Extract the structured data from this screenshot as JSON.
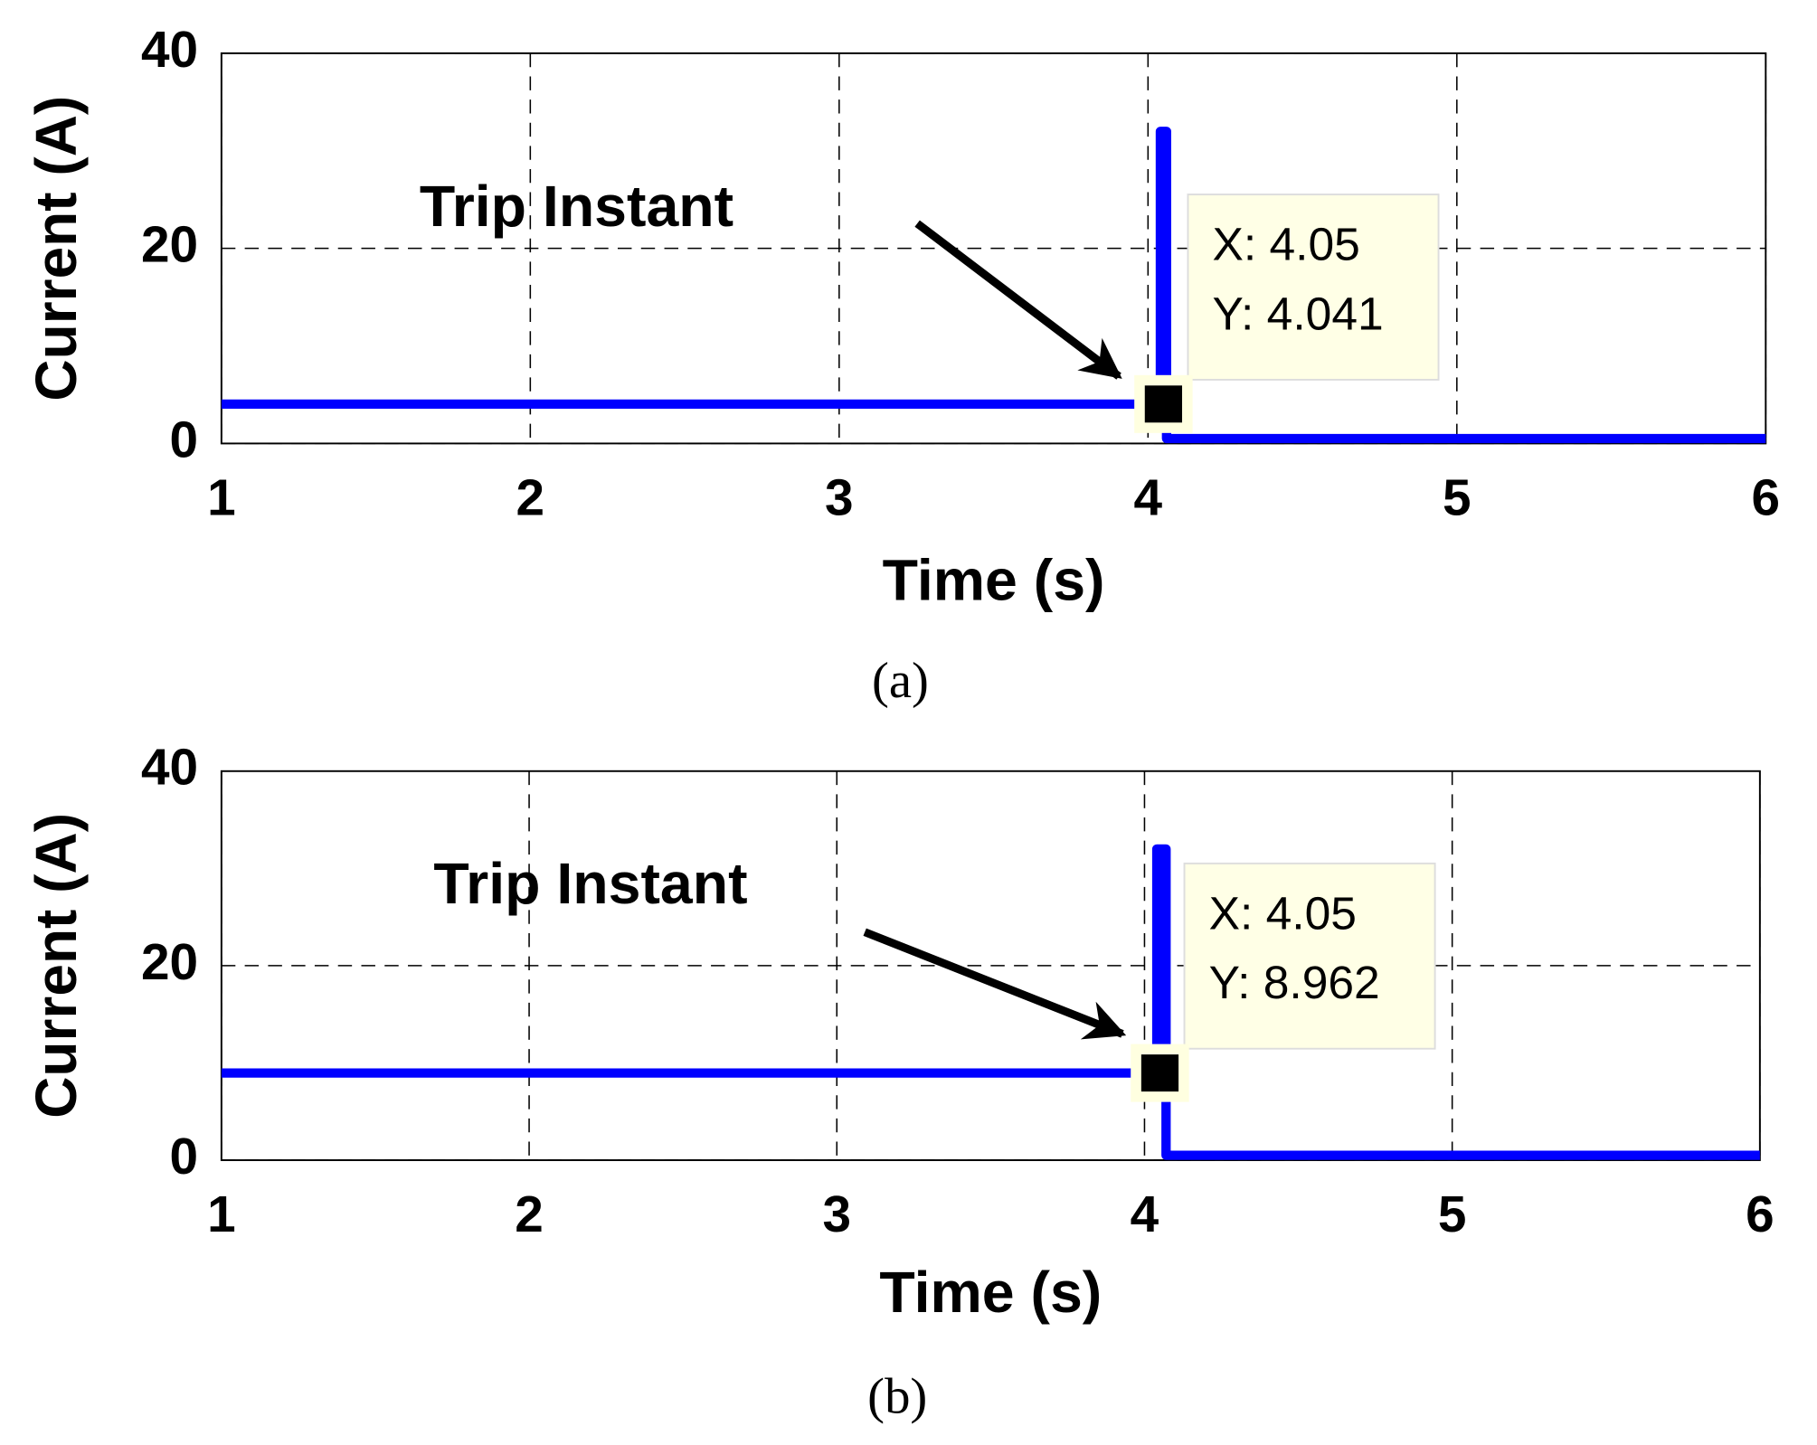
{
  "chart_data": [
    {
      "type": "line",
      "caption": "(a)",
      "xlabel": "Time (s)",
      "ylabel": "Current (A)",
      "annotation": "Trip Instant",
      "xlim": [
        1,
        6
      ],
      "ylim": [
        0,
        40
      ],
      "xticks": [
        1,
        2,
        3,
        4,
        5,
        6
      ],
      "yticks": [
        0,
        20,
        40
      ],
      "grid": true,
      "series": [
        {
          "color": "#0000ff",
          "x": [
            1,
            4.04,
            4.04,
            4.06,
            4.06,
            6
          ],
          "values": [
            4.041,
            4.041,
            32,
            32,
            0.5,
            0.5
          ]
        }
      ],
      "datatip": {
        "x": 4.05,
        "y": 4.041,
        "labels": [
          "X: 4.05",
          "Y: 4.041"
        ]
      }
    },
    {
      "type": "line",
      "caption": "(b)",
      "xlabel": "Time (s)",
      "ylabel": "Current (A)",
      "annotation": "Trip Instant",
      "xlim": [
        1,
        6
      ],
      "ylim": [
        0,
        40
      ],
      "xticks": [
        1,
        2,
        3,
        4,
        5,
        6
      ],
      "yticks": [
        0,
        20,
        40
      ],
      "grid": true,
      "series": [
        {
          "color": "#0000ff",
          "x": [
            1,
            4.04,
            4.04,
            4.07,
            4.07,
            6
          ],
          "values": [
            8.962,
            8.962,
            32,
            32,
            0.5,
            0.5
          ]
        }
      ],
      "datatip": {
        "x": 4.05,
        "y": 8.962,
        "labels": [
          "X: 4.05",
          "Y: 8.962"
        ]
      }
    }
  ]
}
